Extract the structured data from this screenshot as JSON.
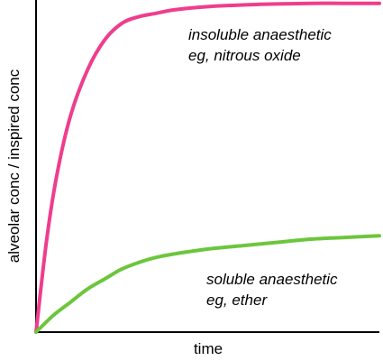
{
  "chart_data": {
    "type": "line",
    "xlabel": "time",
    "ylabel": "alveolar conc / inspired conc",
    "xlim": [
      0,
      10
    ],
    "ylim": [
      0,
      1
    ],
    "grid": false,
    "legend": "none",
    "series": [
      {
        "id": "insoluble",
        "label_lines": [
          "insoluble anaesthetic",
          "eg, nitrous oxide"
        ],
        "color": "#ef3d8d",
        "x": [
          0,
          0.3,
          0.6,
          1.0,
          1.5,
          2.0,
          2.5,
          3.0,
          3.5,
          4.0,
          5.0,
          6.0,
          7.0,
          8.0,
          9.0,
          10.0
        ],
        "y": [
          0,
          0.27,
          0.47,
          0.65,
          0.79,
          0.88,
          0.93,
          0.95,
          0.96,
          0.97,
          0.98,
          0.985,
          0.988,
          0.99,
          0.99,
          0.99
        ]
      },
      {
        "id": "soluble",
        "label_lines": [
          "soluble anaesthetic",
          "eg, ether"
        ],
        "color": "#6cc63d",
        "x": [
          0,
          0.5,
          1.0,
          1.5,
          2.0,
          2.5,
          3.0,
          3.5,
          4.0,
          5.0,
          6.0,
          7.0,
          8.0,
          9.0,
          10.0
        ],
        "y": [
          0,
          0.05,
          0.09,
          0.13,
          0.16,
          0.19,
          0.21,
          0.225,
          0.235,
          0.25,
          0.26,
          0.27,
          0.28,
          0.285,
          0.29
        ]
      }
    ]
  }
}
